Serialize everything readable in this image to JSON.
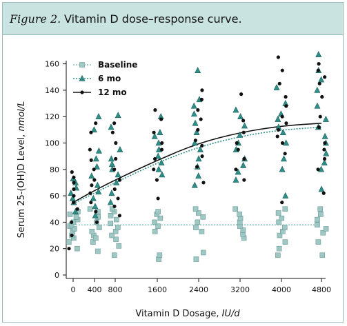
{
  "figure": {
    "label": "Figure 2.",
    "title": "Vitamin D dose–response curve."
  },
  "chart_data": {
    "type": "scatter",
    "xlabel_prefix": "Vitamin D Dosage, ",
    "xlabel_unit": "IU/d",
    "ylabel_prefix": "Serum 25-(OH)D Level, ",
    "ylabel_unit": "nmol/L",
    "x_ticks": [
      0,
      400,
      800,
      1600,
      2400,
      3200,
      4000,
      4800
    ],
    "y_ticks": [
      0,
      20,
      40,
      60,
      80,
      100,
      120,
      140,
      160
    ],
    "ylim": [
      0,
      165
    ],
    "legend_position": "top-left",
    "colors": {
      "baseline": "#9fc8c4",
      "six_mo": "#2f8f88",
      "twelve_mo": "#111111",
      "curve": "#111111",
      "baseline_line": "#6fb5ae",
      "six_line": "#2f8f88"
    },
    "series": [
      {
        "name": "Baseline",
        "marker": "square",
        "fit_line": [
          [
            0,
            38
          ],
          [
            4800,
            38
          ]
        ],
        "points": [
          [
            0,
            20
          ],
          [
            0,
            25
          ],
          [
            0,
            28
          ],
          [
            0,
            30
          ],
          [
            0,
            33
          ],
          [
            0,
            35
          ],
          [
            0,
            37
          ],
          [
            0,
            38
          ],
          [
            0,
            40
          ],
          [
            0,
            42
          ],
          [
            0,
            44
          ],
          [
            0,
            46
          ],
          [
            0,
            48
          ],
          [
            400,
            18
          ],
          [
            400,
            25
          ],
          [
            400,
            30
          ],
          [
            400,
            33
          ],
          [
            400,
            36
          ],
          [
            400,
            40
          ],
          [
            400,
            44
          ],
          [
            400,
            48
          ],
          [
            400,
            50
          ],
          [
            400,
            28
          ],
          [
            800,
            15
          ],
          [
            800,
            22
          ],
          [
            800,
            27
          ],
          [
            800,
            30
          ],
          [
            800,
            33
          ],
          [
            800,
            36
          ],
          [
            800,
            39
          ],
          [
            800,
            42
          ],
          [
            800,
            45
          ],
          [
            800,
            48
          ],
          [
            800,
            50
          ],
          [
            1600,
            12
          ],
          [
            1600,
            15
          ],
          [
            1600,
            33
          ],
          [
            1600,
            37
          ],
          [
            1600,
            40
          ],
          [
            1600,
            43
          ],
          [
            1600,
            46
          ],
          [
            1600,
            48
          ],
          [
            2400,
            12
          ],
          [
            2400,
            17
          ],
          [
            2400,
            33
          ],
          [
            2400,
            36
          ],
          [
            2400,
            40
          ],
          [
            2400,
            44
          ],
          [
            2400,
            47
          ],
          [
            2400,
            50
          ],
          [
            3200,
            28
          ],
          [
            3200,
            31
          ],
          [
            3200,
            34
          ],
          [
            3200,
            37
          ],
          [
            3200,
            40
          ],
          [
            3200,
            43
          ],
          [
            3200,
            46
          ],
          [
            3200,
            50
          ],
          [
            4000,
            15
          ],
          [
            4000,
            20
          ],
          [
            4000,
            25
          ],
          [
            4000,
            30
          ],
          [
            4000,
            33
          ],
          [
            4000,
            36
          ],
          [
            4000,
            40
          ],
          [
            4000,
            43
          ],
          [
            4000,
            47
          ],
          [
            4000,
            50
          ],
          [
            4800,
            15
          ],
          [
            4800,
            25
          ],
          [
            4800,
            32
          ],
          [
            4800,
            35
          ],
          [
            4800,
            38
          ],
          [
            4800,
            42
          ],
          [
            4800,
            46
          ],
          [
            4800,
            50
          ]
        ]
      },
      {
        "name": "6 mo",
        "marker": "triangle",
        "fit_line": [
          [
            0,
            54
          ],
          [
            400,
            62
          ],
          [
            800,
            70
          ],
          [
            1600,
            85
          ],
          [
            2400,
            97
          ],
          [
            3200,
            105
          ],
          [
            4000,
            110
          ],
          [
            4800,
            112
          ]
        ],
        "points": [
          [
            0,
            48
          ],
          [
            0,
            55
          ],
          [
            0,
            58
          ],
          [
            0,
            62
          ],
          [
            0,
            66
          ],
          [
            0,
            70
          ],
          [
            0,
            73
          ],
          [
            400,
            45
          ],
          [
            400,
            52
          ],
          [
            400,
            58
          ],
          [
            400,
            63
          ],
          [
            400,
            68
          ],
          [
            400,
            75
          ],
          [
            400,
            82
          ],
          [
            400,
            88
          ],
          [
            400,
            94
          ],
          [
            400,
            110
          ],
          [
            400,
            120
          ],
          [
            800,
            55
          ],
          [
            800,
            62
          ],
          [
            800,
            70
          ],
          [
            800,
            76
          ],
          [
            800,
            80
          ],
          [
            800,
            84
          ],
          [
            800,
            88
          ],
          [
            800,
            95
          ],
          [
            800,
            112
          ],
          [
            800,
            121
          ],
          [
            1600,
            76
          ],
          [
            1600,
            80
          ],
          [
            1600,
            85
          ],
          [
            1600,
            90
          ],
          [
            1600,
            95
          ],
          [
            1600,
            100
          ],
          [
            1600,
            105
          ],
          [
            1600,
            108
          ],
          [
            1600,
            120
          ],
          [
            2400,
            68
          ],
          [
            2400,
            75
          ],
          [
            2400,
            82
          ],
          [
            2400,
            88
          ],
          [
            2400,
            95
          ],
          [
            2400,
            100
          ],
          [
            2400,
            108
          ],
          [
            2400,
            115
          ],
          [
            2400,
            122
          ],
          [
            2400,
            128
          ],
          [
            2400,
            133
          ],
          [
            2400,
            155
          ],
          [
            3200,
            72
          ],
          [
            3200,
            78
          ],
          [
            3200,
            83
          ],
          [
            3200,
            88
          ],
          [
            3200,
            95
          ],
          [
            3200,
            100
          ],
          [
            3200,
            106
          ],
          [
            3200,
            113
          ],
          [
            3200,
            120
          ],
          [
            3200,
            125
          ],
          [
            4000,
            60
          ],
          [
            4000,
            80
          ],
          [
            4000,
            88
          ],
          [
            4000,
            100
          ],
          [
            4000,
            108
          ],
          [
            4000,
            112
          ],
          [
            4000,
            118
          ],
          [
            4000,
            122
          ],
          [
            4000,
            130
          ],
          [
            4000,
            142
          ],
          [
            4800,
            65
          ],
          [
            4800,
            80
          ],
          [
            4800,
            85
          ],
          [
            4800,
            92
          ],
          [
            4800,
            100
          ],
          [
            4800,
            105
          ],
          [
            4800,
            112
          ],
          [
            4800,
            118
          ],
          [
            4800,
            128
          ],
          [
            4800,
            140
          ],
          [
            4800,
            148
          ],
          [
            4800,
            155
          ],
          [
            4800,
            167
          ]
        ]
      },
      {
        "name": "12 mo",
        "marker": "circle",
        "fit_line": [
          [
            0,
            55
          ],
          [
            400,
            64
          ],
          [
            800,
            72
          ],
          [
            1600,
            87
          ],
          [
            2400,
            100
          ],
          [
            3200,
            108
          ],
          [
            4000,
            113
          ],
          [
            4800,
            115
          ]
        ],
        "points": [
          [
            0,
            20
          ],
          [
            0,
            30
          ],
          [
            0,
            40
          ],
          [
            0,
            50
          ],
          [
            0,
            55
          ],
          [
            0,
            60
          ],
          [
            0,
            65
          ],
          [
            0,
            70
          ],
          [
            0,
            74
          ],
          [
            0,
            78
          ],
          [
            400,
            40
          ],
          [
            400,
            48
          ],
          [
            400,
            55
          ],
          [
            400,
            62
          ],
          [
            400,
            68
          ],
          [
            400,
            72
          ],
          [
            400,
            80
          ],
          [
            400,
            87
          ],
          [
            400,
            95
          ],
          [
            400,
            108
          ],
          [
            400,
            115
          ],
          [
            800,
            45
          ],
          [
            800,
            52
          ],
          [
            800,
            58
          ],
          [
            800,
            65
          ],
          [
            800,
            72
          ],
          [
            800,
            80
          ],
          [
            800,
            88
          ],
          [
            800,
            100
          ],
          [
            800,
            108
          ],
          [
            800,
            115
          ],
          [
            1600,
            58
          ],
          [
            1600,
            72
          ],
          [
            1600,
            80
          ],
          [
            1600,
            88
          ],
          [
            1600,
            95
          ],
          [
            1600,
            100
          ],
          [
            1600,
            108
          ],
          [
            1600,
            118
          ],
          [
            1600,
            125
          ],
          [
            2400,
            70
          ],
          [
            2400,
            82
          ],
          [
            2400,
            90
          ],
          [
            2400,
            98
          ],
          [
            2400,
            102
          ],
          [
            2400,
            110
          ],
          [
            2400,
            118
          ],
          [
            2400,
            125
          ],
          [
            2400,
            133
          ],
          [
            2400,
            140
          ],
          [
            3200,
            72
          ],
          [
            3200,
            80
          ],
          [
            3200,
            88
          ],
          [
            3200,
            95
          ],
          [
            3200,
            100
          ],
          [
            3200,
            108
          ],
          [
            3200,
            117
          ],
          [
            3200,
            137
          ],
          [
            4000,
            55
          ],
          [
            4000,
            92
          ],
          [
            4000,
            100
          ],
          [
            4000,
            105
          ],
          [
            4000,
            110
          ],
          [
            4000,
            115
          ],
          [
            4000,
            120
          ],
          [
            4000,
            128
          ],
          [
            4000,
            135
          ],
          [
            4000,
            145
          ],
          [
            4000,
            155
          ],
          [
            4000,
            165
          ],
          [
            4800,
            62
          ],
          [
            4800,
            80
          ],
          [
            4800,
            88
          ],
          [
            4800,
            95
          ],
          [
            4800,
            100
          ],
          [
            4800,
            112
          ],
          [
            4800,
            120
          ],
          [
            4800,
            135
          ],
          [
            4800,
            145
          ],
          [
            4800,
            150
          ],
          [
            4800,
            155
          ],
          [
            4800,
            160
          ]
        ]
      }
    ]
  }
}
